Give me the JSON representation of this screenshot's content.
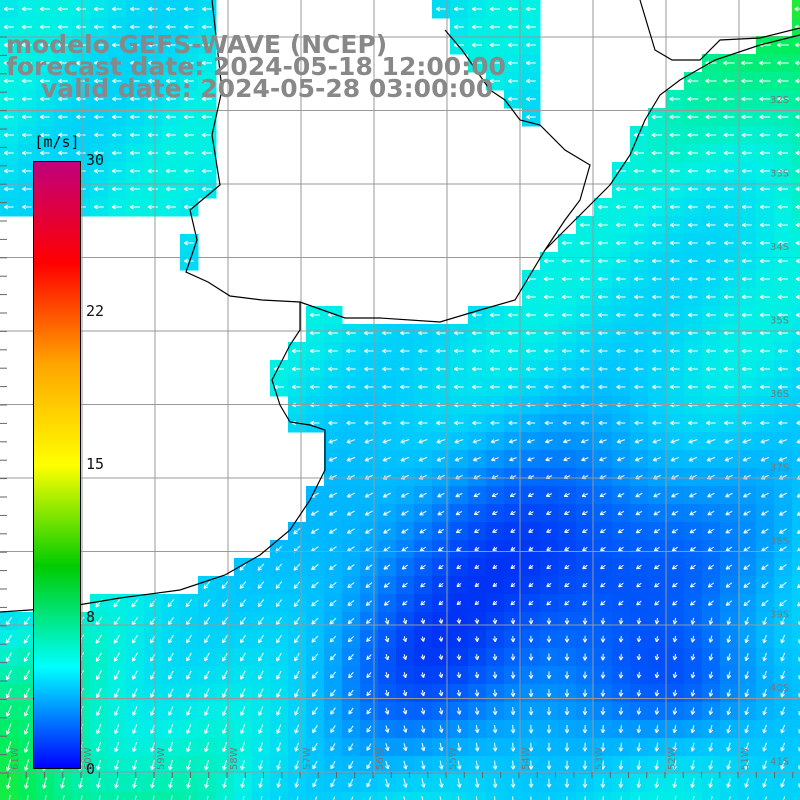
{
  "title": {
    "line1": "modelo GEFS-WAVE (NCEP)",
    "line2": "forecast date: 2024-05-18 12:00:00",
    "line3": "valid date: 2024-05-28 03:00:00"
  },
  "colorbar": {
    "unit": "[m/s]",
    "labels": [
      "30",
      "22",
      "15",
      "8",
      "0"
    ],
    "values": [
      30,
      22,
      15,
      8,
      0
    ],
    "colors": [
      "#c0007c",
      "#ff0000",
      "#ffa500",
      "#ffff00",
      "#00cc00",
      "#00ffff",
      "#0000ff"
    ]
  },
  "map": {
    "lat_labels": [
      "32S",
      "33S",
      "34S",
      "35S",
      "36S",
      "37S",
      "38S",
      "39S",
      "40S",
      "41S"
    ],
    "lon_labels": [
      "61W",
      "60W",
      "59W",
      "58W",
      "57W",
      "56W",
      "55W",
      "54W",
      "53W",
      "52W",
      "51W"
    ],
    "colors": {
      "land": "#ffffff",
      "coast": "#000000",
      "grid": "#999999",
      "arrow": "#ffffff",
      "calm": "#0010ee",
      "moderate": "#00c8ff",
      "fresh": "#00ee44"
    }
  }
}
